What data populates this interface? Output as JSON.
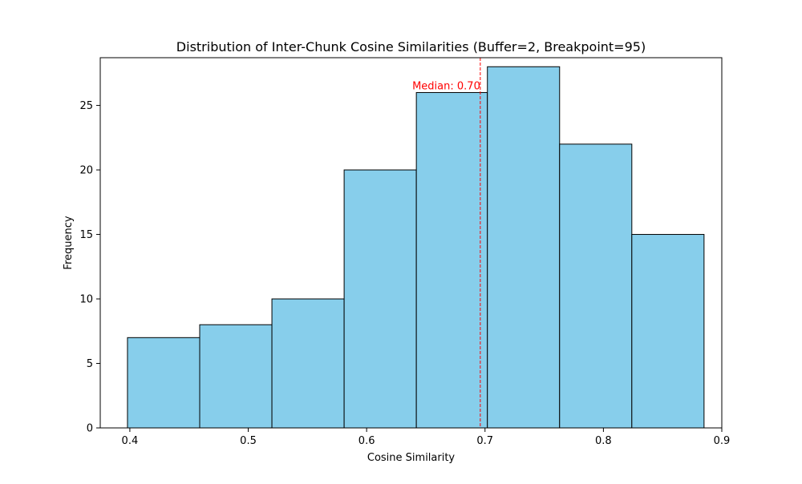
{
  "chart_data": {
    "type": "bar",
    "title": "Distribution of Inter-Chunk Cosine Similarities (Buffer=2, Breakpoint=95)",
    "xlabel": "Cosine Similarity",
    "ylabel": "Frequency",
    "xlim": [
      0.375,
      0.9
    ],
    "ylim": [
      0,
      28.7
    ],
    "x_ticks": [
      0.4,
      0.5,
      0.6,
      0.7,
      0.8,
      0.9
    ],
    "x_tick_labels": [
      "0.4",
      "0.5",
      "0.6",
      "0.7",
      "0.8",
      "0.9"
    ],
    "y_ticks": [
      0,
      5,
      10,
      15,
      20,
      25
    ],
    "y_tick_labels": [
      "0",
      "5",
      "10",
      "15",
      "20",
      "25"
    ],
    "bins": [
      {
        "start": 0.398,
        "end": 0.459,
        "value": 7
      },
      {
        "start": 0.459,
        "end": 0.52,
        "value": 8
      },
      {
        "start": 0.52,
        "end": 0.581,
        "value": 10
      },
      {
        "start": 0.581,
        "end": 0.642,
        "value": 20
      },
      {
        "start": 0.642,
        "end": 0.702,
        "value": 26
      },
      {
        "start": 0.702,
        "end": 0.763,
        "value": 28
      },
      {
        "start": 0.763,
        "end": 0.824,
        "value": 22
      },
      {
        "start": 0.824,
        "end": 0.885,
        "value": 15
      }
    ],
    "median": {
      "value": 0.696,
      "label": "Median: 0.70",
      "color": "#ff0000"
    },
    "bar_color": "#87ceeb",
    "edge_color": "#000000",
    "grid": false,
    "legend": "none"
  }
}
